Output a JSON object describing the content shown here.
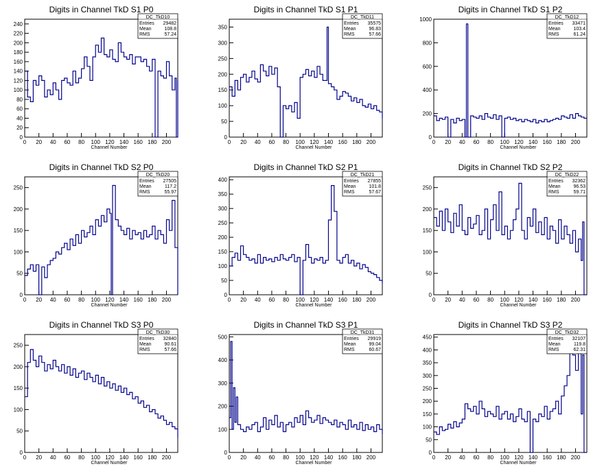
{
  "page": {
    "background": "#ffffff",
    "line_color": "#00008b"
  },
  "chart_data": [
    {
      "type": "line",
      "title": "Digits in Channel TkD S1 P0",
      "xlabel": "Channel Number",
      "ylabel": "",
      "xlim": [
        0,
        216
      ],
      "ylim": [
        0,
        250
      ],
      "xticks": [
        0,
        20,
        40,
        60,
        80,
        100,
        120,
        140,
        160,
        180,
        200
      ],
      "yticks": [
        0,
        20,
        40,
        60,
        80,
        100,
        120,
        140,
        160,
        180,
        200,
        220,
        240
      ],
      "stats": {
        "name": "DC_TkD10",
        "entries": "29482",
        "mean": "108.8",
        "rms": "57.24"
      },
      "x": [
        0,
        4,
        8,
        12,
        16,
        20,
        24,
        28,
        32,
        36,
        40,
        44,
        48,
        52,
        56,
        60,
        64,
        68,
        72,
        76,
        80,
        84,
        88,
        92,
        96,
        100,
        104,
        108,
        112,
        116,
        120,
        124,
        128,
        132,
        136,
        140,
        144,
        148,
        152,
        156,
        160,
        164,
        168,
        172,
        176,
        180,
        184,
        188,
        192,
        196,
        200,
        204,
        208,
        212,
        214,
        216
      ],
      "values": [
        140,
        85,
        75,
        120,
        110,
        130,
        120,
        85,
        100,
        90,
        115,
        100,
        80,
        120,
        125,
        115,
        110,
        140,
        115,
        125,
        145,
        170,
        150,
        120,
        170,
        195,
        180,
        210,
        175,
        170,
        185,
        165,
        160,
        200,
        180,
        170,
        165,
        175,
        155,
        170,
        170,
        160,
        165,
        150,
        140,
        165,
        0,
        140,
        130,
        125,
        160,
        130,
        100,
        125,
        0,
        120
      ]
    },
    {
      "type": "line",
      "title": "Digits in Channel TkD S1 P1",
      "xlabel": "Channel Number",
      "ylabel": "",
      "xlim": [
        0,
        216
      ],
      "ylim": [
        0,
        375
      ],
      "xticks": [
        0,
        20,
        40,
        60,
        80,
        100,
        120,
        140,
        160,
        180,
        200
      ],
      "yticks": [
        0,
        50,
        100,
        150,
        200,
        250,
        300,
        350
      ],
      "stats": {
        "name": "DC_TkD11",
        "entries": "35575",
        "mean": "96.83",
        "rms": "57.66"
      },
      "x": [
        0,
        4,
        8,
        12,
        16,
        20,
        24,
        28,
        32,
        36,
        40,
        44,
        48,
        52,
        56,
        60,
        64,
        68,
        72,
        76,
        80,
        84,
        88,
        92,
        96,
        100,
        104,
        108,
        112,
        116,
        120,
        124,
        128,
        132,
        136,
        138,
        140,
        144,
        148,
        152,
        156,
        160,
        164,
        168,
        172,
        176,
        180,
        184,
        188,
        192,
        196,
        200,
        204,
        208,
        212,
        216
      ],
      "values": [
        160,
        130,
        180,
        150,
        190,
        200,
        175,
        190,
        210,
        185,
        175,
        230,
        210,
        195,
        225,
        200,
        220,
        160,
        0,
        100,
        90,
        100,
        80,
        110,
        60,
        190,
        200,
        215,
        195,
        210,
        190,
        225,
        200,
        180,
        180,
        350,
        170,
        160,
        150,
        120,
        130,
        145,
        140,
        130,
        115,
        125,
        110,
        120,
        100,
        95,
        105,
        90,
        100,
        85,
        80,
        60
      ]
    },
    {
      "type": "line",
      "title": "Digits in Channel TkD S1 P2",
      "xlabel": "Channel Number",
      "ylabel": "",
      "xlim": [
        0,
        216
      ],
      "ylim": [
        0,
        1000
      ],
      "xticks": [
        0,
        20,
        40,
        60,
        80,
        100,
        120,
        140,
        160,
        180,
        200
      ],
      "yticks": [
        0,
        200,
        400,
        600,
        800,
        1000
      ],
      "stats": {
        "name": "DC_TkD12",
        "entries": "33471",
        "mean": "103.4",
        "rms": "61.24"
      },
      "x": [
        0,
        4,
        8,
        12,
        16,
        20,
        24,
        28,
        32,
        36,
        40,
        44,
        46,
        48,
        52,
        56,
        60,
        64,
        68,
        72,
        76,
        80,
        84,
        88,
        92,
        96,
        100,
        104,
        108,
        112,
        116,
        120,
        124,
        128,
        132,
        136,
        140,
        144,
        148,
        152,
        156,
        160,
        164,
        168,
        172,
        176,
        180,
        184,
        188,
        192,
        196,
        200,
        204,
        208,
        212
      ],
      "values": [
        180,
        140,
        160,
        150,
        170,
        0,
        150,
        120,
        160,
        140,
        150,
        0,
        960,
        0,
        180,
        170,
        160,
        180,
        150,
        200,
        170,
        160,
        190,
        150,
        180,
        0,
        160,
        170,
        150,
        160,
        140,
        150,
        130,
        150,
        140,
        130,
        150,
        120,
        140,
        130,
        150,
        130,
        140,
        150,
        160,
        150,
        180,
        170,
        160,
        190,
        160,
        200,
        180,
        170,
        160
      ]
    },
    {
      "type": "line",
      "title": "Digits in Channel TkD S2 P0",
      "xlabel": "Channel Number",
      "ylabel": "",
      "xlim": [
        0,
        216
      ],
      "ylim": [
        0,
        275
      ],
      "xticks": [
        0,
        20,
        40,
        60,
        80,
        100,
        120,
        140,
        160,
        180,
        200
      ],
      "yticks": [
        0,
        50,
        100,
        150,
        200,
        250
      ],
      "stats": {
        "name": "DC_TkD20",
        "entries": "27505",
        "mean": "117.2",
        "rms": "55.97"
      },
      "x": [
        0,
        4,
        8,
        12,
        16,
        20,
        24,
        28,
        32,
        36,
        40,
        44,
        48,
        52,
        56,
        60,
        64,
        68,
        72,
        76,
        80,
        84,
        88,
        92,
        96,
        100,
        104,
        108,
        112,
        116,
        120,
        122,
        124,
        128,
        132,
        136,
        140,
        144,
        148,
        152,
        156,
        160,
        164,
        168,
        172,
        176,
        180,
        184,
        188,
        192,
        196,
        200,
        204,
        208,
        212,
        216
      ],
      "values": [
        45,
        60,
        70,
        55,
        70,
        0,
        65,
        40,
        70,
        80,
        85,
        100,
        95,
        110,
        120,
        105,
        130,
        115,
        140,
        120,
        150,
        135,
        145,
        160,
        140,
        175,
        160,
        185,
        170,
        200,
        190,
        0,
        255,
        175,
        160,
        150,
        140,
        155,
        130,
        150,
        140,
        145,
        130,
        150,
        135,
        140,
        160,
        130,
        150,
        140,
        120,
        175,
        150,
        220,
        110,
        0
      ]
    },
    {
      "type": "line",
      "title": "Digits in Channel TkD S2 P1",
      "xlabel": "Channel Number",
      "ylabel": "",
      "xlim": [
        0,
        216
      ],
      "ylim": [
        0,
        410
      ],
      "xticks": [
        0,
        20,
        40,
        60,
        80,
        100,
        120,
        140,
        160,
        180,
        200
      ],
      "yticks": [
        0,
        50,
        100,
        150,
        200,
        250,
        300,
        350,
        400
      ],
      "stats": {
        "name": "DC_TkD21",
        "entries": "27855",
        "mean": "101.8",
        "rms": "57.67"
      },
      "x": [
        0,
        4,
        8,
        12,
        16,
        20,
        24,
        28,
        32,
        36,
        40,
        44,
        48,
        52,
        56,
        60,
        64,
        68,
        72,
        76,
        80,
        84,
        88,
        92,
        96,
        100,
        104,
        108,
        112,
        116,
        120,
        124,
        128,
        132,
        136,
        140,
        144,
        148,
        152,
        156,
        160,
        164,
        168,
        172,
        176,
        180,
        184,
        188,
        192,
        196,
        200,
        204,
        208,
        212,
        216
      ],
      "values": [
        100,
        130,
        145,
        120,
        170,
        140,
        130,
        120,
        125,
        110,
        140,
        110,
        130,
        120,
        125,
        115,
        130,
        120,
        140,
        125,
        120,
        130,
        140,
        115,
        130,
        0,
        120,
        175,
        130,
        110,
        125,
        120,
        130,
        110,
        120,
        260,
        380,
        290,
        120,
        110,
        130,
        140,
        110,
        120,
        100,
        110,
        90,
        105,
        95,
        80,
        75,
        70,
        60,
        50,
        40
      ]
    },
    {
      "type": "line",
      "title": "Digits in Channel TkD S2 P2",
      "xlabel": "Channel Number",
      "ylabel": "",
      "xlim": [
        0,
        216
      ],
      "ylim": [
        0,
        275
      ],
      "xticks": [
        0,
        20,
        40,
        60,
        80,
        100,
        120,
        140,
        160,
        180,
        200
      ],
      "yticks": [
        0,
        50,
        100,
        150,
        200,
        250
      ],
      "stats": {
        "name": "DC_TkD22",
        "entries": "32362",
        "mean": "96.53",
        "rms": "59.71"
      },
      "x": [
        0,
        4,
        8,
        12,
        16,
        20,
        24,
        28,
        32,
        36,
        40,
        44,
        48,
        52,
        56,
        60,
        64,
        68,
        72,
        76,
        80,
        84,
        88,
        92,
        96,
        100,
        104,
        108,
        112,
        116,
        120,
        124,
        128,
        132,
        136,
        140,
        144,
        148,
        152,
        156,
        160,
        164,
        168,
        172,
        176,
        180,
        184,
        188,
        192,
        196,
        200,
        204,
        208,
        210,
        212
      ],
      "values": [
        180,
        160,
        195,
        150,
        200,
        170,
        145,
        190,
        160,
        210,
        150,
        140,
        180,
        155,
        165,
        185,
        140,
        150,
        200,
        130,
        175,
        210,
        150,
        240,
        140,
        160,
        130,
        150,
        175,
        200,
        260,
        150,
        130,
        180,
        160,
        200,
        145,
        170,
        140,
        180,
        130,
        160,
        150,
        120,
        175,
        130,
        160,
        140,
        120,
        150,
        100,
        130,
        80,
        170,
        0
      ]
    },
    {
      "type": "line",
      "title": "Digits in Channel TkD S3 P0",
      "xlabel": "Channel Number",
      "ylabel": "",
      "xlim": [
        0,
        216
      ],
      "ylim": [
        0,
        275
      ],
      "xticks": [
        0,
        20,
        40,
        60,
        80,
        100,
        120,
        140,
        160,
        180,
        200
      ],
      "yticks": [
        0,
        50,
        100,
        150,
        200,
        250
      ],
      "stats": {
        "name": "DC_TkD30",
        "entries": "32840",
        "mean": "90.61",
        "rms": "57.66"
      },
      "x": [
        0,
        4,
        8,
        12,
        16,
        20,
        24,
        28,
        32,
        36,
        40,
        44,
        48,
        52,
        56,
        60,
        64,
        68,
        72,
        76,
        80,
        84,
        88,
        92,
        96,
        100,
        104,
        108,
        112,
        116,
        120,
        124,
        128,
        132,
        136,
        140,
        144,
        148,
        152,
        156,
        160,
        164,
        168,
        172,
        176,
        180,
        184,
        188,
        192,
        196,
        200,
        204,
        208,
        212,
        216
      ],
      "values": [
        130,
        210,
        240,
        215,
        200,
        225,
        210,
        190,
        205,
        195,
        215,
        200,
        190,
        205,
        185,
        200,
        180,
        195,
        175,
        185,
        190,
        170,
        185,
        175,
        165,
        180,
        160,
        175,
        155,
        165,
        150,
        160,
        145,
        155,
        140,
        150,
        135,
        140,
        125,
        130,
        115,
        120,
        105,
        110,
        95,
        100,
        90,
        80,
        85,
        75,
        65,
        70,
        60,
        55,
        35
      ]
    },
    {
      "type": "line",
      "title": "Digits in Channel TkD S3 P1",
      "xlabel": "Channel Number",
      "ylabel": "",
      "xlim": [
        0,
        216
      ],
      "ylim": [
        0,
        510
      ],
      "xticks": [
        0,
        20,
        40,
        60,
        80,
        100,
        120,
        140,
        160,
        180,
        200
      ],
      "yticks": [
        0,
        100,
        200,
        300,
        400,
        500
      ],
      "stats": {
        "name": "DC_TkD31",
        "entries": "29919",
        "mean": "99.04",
        "rms": "60.67"
      },
      "x": [
        0,
        2,
        4,
        6,
        8,
        10,
        12,
        16,
        20,
        24,
        28,
        32,
        36,
        40,
        44,
        48,
        52,
        56,
        60,
        64,
        68,
        72,
        76,
        80,
        84,
        88,
        92,
        96,
        100,
        104,
        108,
        112,
        116,
        120,
        124,
        128,
        132,
        136,
        140,
        144,
        148,
        152,
        156,
        160,
        164,
        168,
        172,
        176,
        180,
        184,
        188,
        192,
        196,
        200,
        204,
        208,
        212,
        216
      ],
      "values": [
        150,
        480,
        100,
        280,
        130,
        240,
        120,
        100,
        90,
        110,
        100,
        120,
        130,
        90,
        110,
        150,
        100,
        140,
        120,
        160,
        110,
        130,
        90,
        120,
        130,
        110,
        150,
        130,
        160,
        120,
        180,
        150,
        130,
        140,
        160,
        125,
        150,
        140,
        130,
        120,
        140,
        110,
        130,
        120,
        100,
        140,
        110,
        120,
        100,
        130,
        95,
        120,
        100,
        110,
        90,
        120,
        100,
        80
      ]
    },
    {
      "type": "line",
      "title": "Digits in Channel TkD S3 P2",
      "xlabel": "Channel Number",
      "ylabel": "",
      "xlim": [
        0,
        216
      ],
      "ylim": [
        0,
        460
      ],
      "xticks": [
        0,
        20,
        40,
        60,
        80,
        100,
        120,
        140,
        160,
        180,
        200
      ],
      "yticks": [
        0,
        50,
        100,
        150,
        200,
        250,
        300,
        350,
        400,
        450
      ],
      "stats": {
        "name": "DC_TkD32",
        "entries": "32107",
        "mean": "119.8",
        "rms": "62.31"
      },
      "x": [
        0,
        4,
        8,
        12,
        16,
        20,
        24,
        28,
        32,
        36,
        40,
        44,
        48,
        52,
        56,
        60,
        64,
        68,
        72,
        76,
        80,
        84,
        88,
        92,
        96,
        100,
        104,
        108,
        112,
        116,
        120,
        124,
        128,
        132,
        136,
        140,
        144,
        148,
        152,
        156,
        160,
        164,
        168,
        172,
        176,
        180,
        184,
        188,
        192,
        196,
        200,
        204,
        208,
        210,
        212
      ],
      "values": [
        80,
        70,
        100,
        85,
        90,
        110,
        95,
        120,
        100,
        115,
        130,
        190,
        170,
        160,
        180,
        150,
        200,
        170,
        140,
        160,
        150,
        140,
        180,
        130,
        150,
        160,
        130,
        150,
        120,
        140,
        170,
        130,
        120,
        160,
        0,
        130,
        120,
        150,
        140,
        180,
        130,
        160,
        170,
        200,
        150,
        220,
        260,
        300,
        410,
        380,
        320,
        400,
        150,
        380,
        0
      ]
    }
  ]
}
